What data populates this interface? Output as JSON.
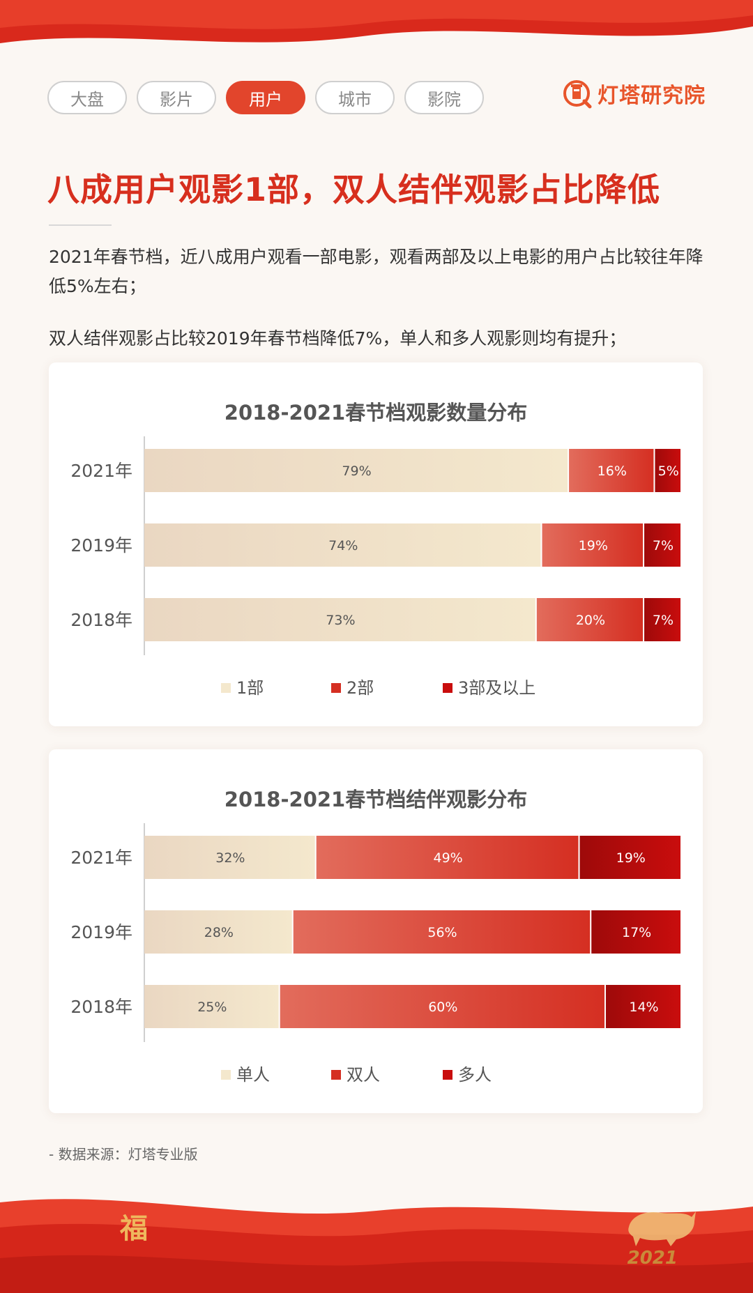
{
  "tabs": [
    {
      "label": "大盘",
      "active": false
    },
    {
      "label": "影片",
      "active": false
    },
    {
      "label": "用户",
      "active": true
    },
    {
      "label": "城市",
      "active": false
    },
    {
      "label": "影院",
      "active": false
    }
  ],
  "brand": {
    "name": "灯塔研究院"
  },
  "headline": "八成用户观影1部，双人结伴观影占比降低",
  "paragraphs": [
    "2021年春节档，近八成用户观看一部电影，观看两部及以上电影的用户占比较往年降低5%左右；",
    "双人结伴观影占比较2019年春节档降低7%，单人和多人观影则均有提升；"
  ],
  "source": "- 数据来源：灯塔专业版",
  "footer": {
    "fu_char": "福",
    "ox_year": "2021"
  },
  "colors": {
    "series1_start": "#ead7c2",
    "series1_end": "#f4e8cd",
    "series2_start": "#e26c5c",
    "series2_end": "#d52f22",
    "series3_start": "#9e0a0a",
    "series3_end": "#c90d0d",
    "accent": "#e2452c"
  },
  "chart_data": [
    {
      "type": "bar",
      "orientation": "horizontal",
      "stacked": true,
      "title": "2018-2021春节档观影数量分布",
      "categories": [
        "2021年",
        "2019年",
        "2018年"
      ],
      "series": [
        {
          "name": "1部",
          "values": [
            79,
            74,
            73
          ]
        },
        {
          "name": "2部",
          "values": [
            16,
            19,
            20
          ]
        },
        {
          "name": "3部及以上",
          "values": [
            5,
            7,
            7
          ]
        }
      ],
      "unit": "%",
      "legend_position": "bottom"
    },
    {
      "type": "bar",
      "orientation": "horizontal",
      "stacked": true,
      "title": "2018-2021春节档结伴观影分布",
      "categories": [
        "2021年",
        "2019年",
        "2018年"
      ],
      "series": [
        {
          "name": "单人",
          "values": [
            32,
            28,
            25
          ]
        },
        {
          "name": "双人",
          "values": [
            49,
            56,
            60
          ]
        },
        {
          "name": "多人",
          "values": [
            19,
            17,
            14
          ]
        }
      ],
      "unit": "%",
      "legend_position": "bottom"
    }
  ]
}
